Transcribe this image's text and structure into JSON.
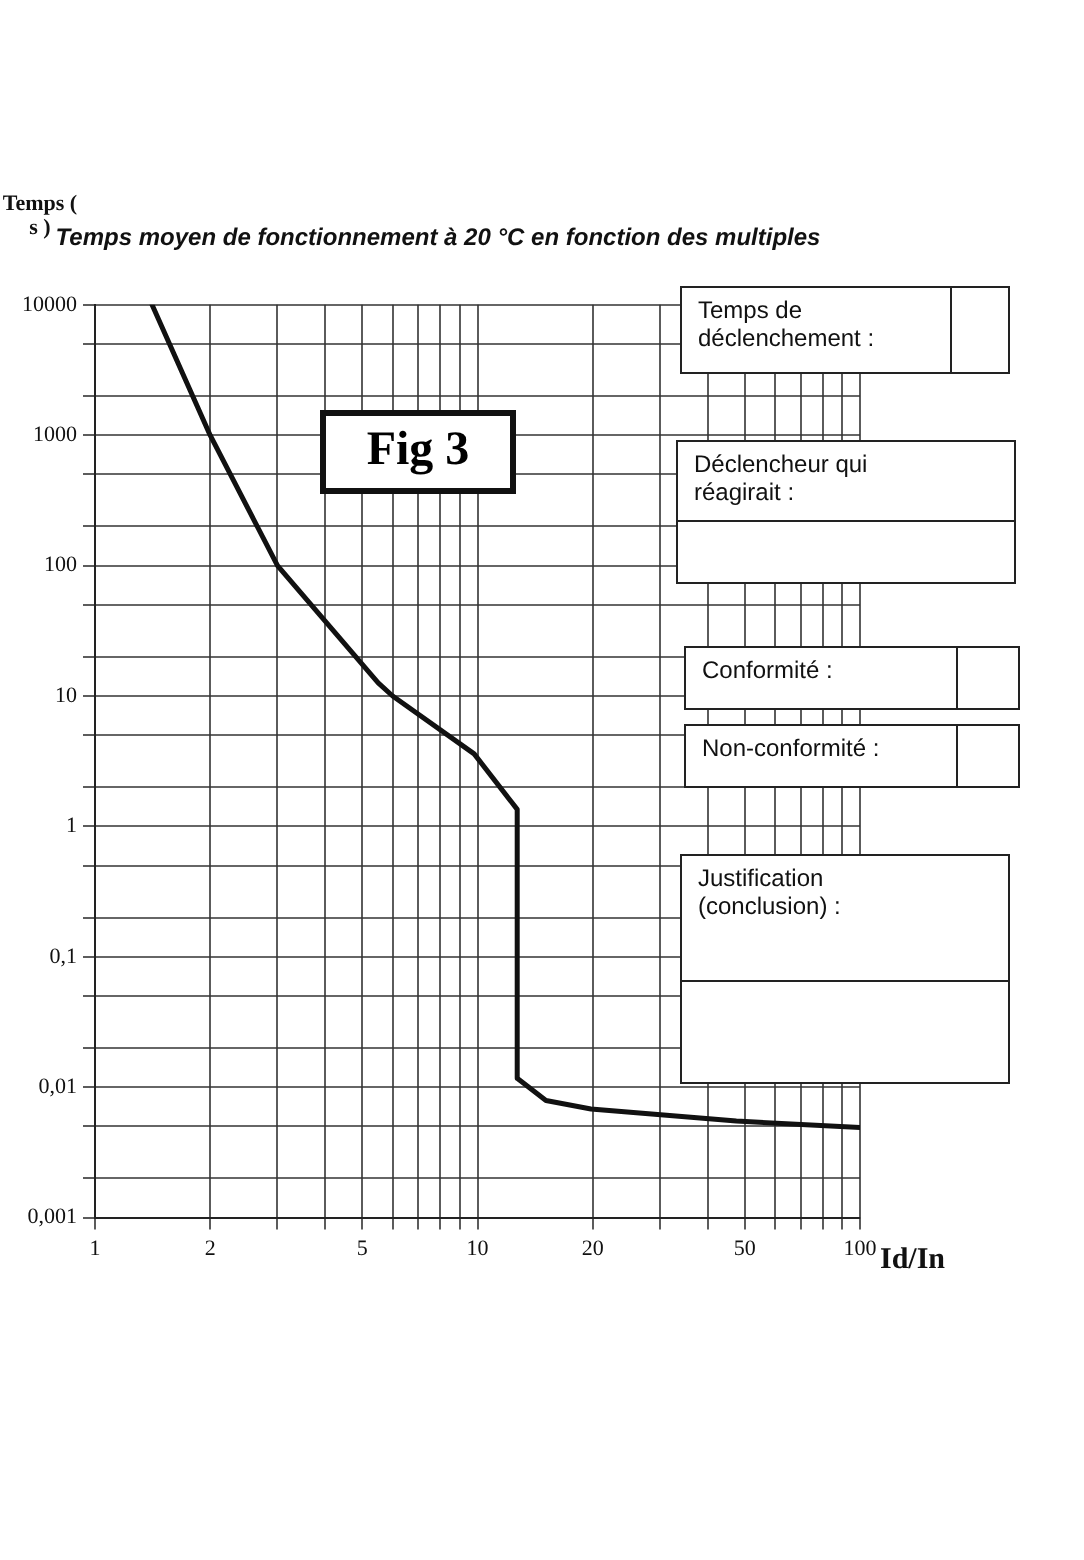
{
  "chart_data": {
    "type": "line",
    "title": "Temps moyen de fonctionnement à 20 °C en fonction des multiples",
    "xlabel": "Id/In",
    "ylabel": "Temps ( s )",
    "x": [
      1.41,
      2.0,
      3.0,
      5.5,
      6.0,
      9.8,
      12.7,
      12.7,
      15.1,
      19.8,
      47.5,
      100
    ],
    "series": [
      {
        "color": "#111111",
        "values": [
          10000,
          1000,
          100,
          12.6,
          10,
          3.6,
          1.35,
          0.0117,
          0.0079,
          0.0068,
          0.0055,
          0.0049
        ]
      }
    ],
    "log": "xy",
    "grid": true,
    "legend": false,
    "marker": "none",
    "line_style": "solid",
    "xlim": [
      1,
      100
    ],
    "ylim": [
      0.001,
      10000
    ],
    "xticks": [
      1,
      2,
      {
        "value": 3,
        "label": null
      },
      {
        "value": 4,
        "label": null
      },
      5,
      {
        "value": 6,
        "label": null
      },
      {
        "value": 7,
        "label": null
      },
      {
        "value": 8,
        "label": null
      },
      {
        "value": 9,
        "label": null
      },
      10,
      20,
      {
        "value": 30,
        "label": null
      },
      {
        "value": 40,
        "label": null
      },
      50,
      {
        "value": 60,
        "label": null
      },
      {
        "value": 70,
        "label": null
      },
      {
        "value": 80,
        "label": null
      },
      {
        "value": 90,
        "label": null
      },
      100
    ],
    "yticks": [
      {
        "value": 0.001,
        "label": "0,001"
      },
      {
        "value": 0.002,
        "label": null
      },
      {
        "value": 0.005,
        "label": null
      },
      {
        "value": 0.01,
        "label": "0,01"
      },
      {
        "value": 0.02,
        "label": null
      },
      {
        "value": 0.05,
        "label": null
      },
      {
        "value": 0.1,
        "label": "0,1"
      },
      {
        "value": 0.2,
        "label": null
      },
      {
        "value": 0.5,
        "label": null
      },
      1,
      {
        "value": 2,
        "label": null
      },
      {
        "value": 5,
        "label": null
      },
      10,
      {
        "value": 20,
        "label": null
      },
      {
        "value": 50,
        "label": null
      },
      100,
      {
        "value": 200,
        "label": null
      },
      {
        "value": 500,
        "label": null
      },
      1000,
      {
        "value": 2000,
        "label": null
      },
      {
        "value": 5000,
        "label": null
      },
      10000
    ],
    "annotations": [
      "Fig 3",
      "Temps de déclenchement :",
      "Déclencheur qui réagirait :",
      "Conformité :",
      "Non-conformité :",
      "Justification (conclusion) :"
    ]
  }
}
